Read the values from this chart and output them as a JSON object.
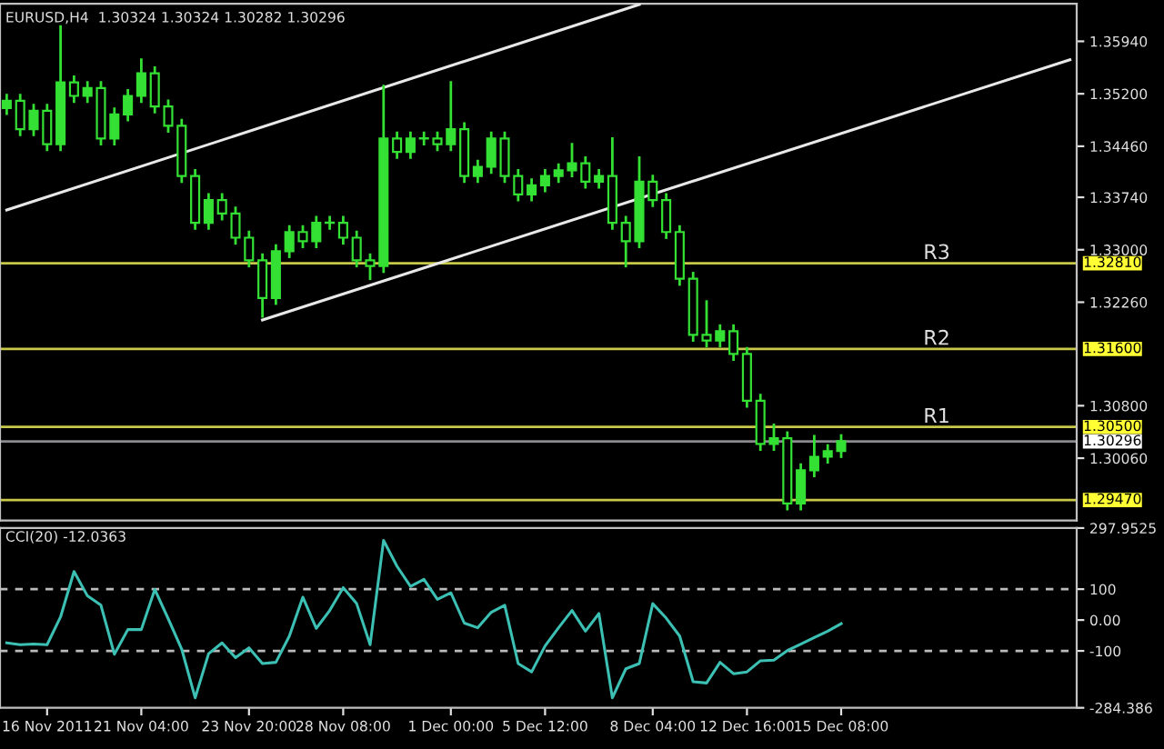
{
  "chart_data": [
    {
      "type": "candlestick",
      "title": "EURUSD,H4  1.30324 1.30324 1.30282 1.30296",
      "color": "#33e033",
      "grid": false,
      "tick_labels": "y",
      "categories": [
        null,
        null,
        null,
        null,
        null,
        null,
        null,
        null,
        null,
        null,
        null,
        null,
        null,
        null,
        null,
        null,
        null,
        null,
        null,
        null,
        null,
        null,
        null,
        null,
        null,
        null,
        null,
        null,
        null,
        null,
        null,
        null,
        null,
        null,
        null,
        null,
        null,
        null,
        null,
        null,
        null,
        null,
        null,
        null,
        null,
        null,
        null,
        null,
        null,
        null,
        null,
        null,
        null,
        null,
        null,
        null,
        null,
        null,
        null,
        null,
        null,
        null,
        null,
        null,
        null,
        null,
        null,
        null,
        null,
        null,
        null,
        null,
        null,
        null,
        null,
        null,
        null,
        null,
        null,
        null
      ],
      "ohlc": [
        [
          1.35,
          1.3518,
          1.3492,
          1.351
        ],
        [
          1.351,
          1.3518,
          1.3462,
          1.347
        ],
        [
          1.347,
          1.3504,
          1.3462,
          1.3496
        ],
        [
          1.3496,
          1.3504,
          1.3441,
          1.3449
        ],
        [
          1.3449,
          1.3615,
          1.3441,
          1.3536
        ],
        [
          1.3536,
          1.3544,
          1.3509,
          1.3517
        ],
        [
          1.3517,
          1.3536,
          1.3509,
          1.3528
        ],
        [
          1.3528,
          1.3536,
          1.3449,
          1.3457
        ],
        [
          1.3457,
          1.3499,
          1.3449,
          1.3491
        ],
        [
          1.3491,
          1.3525,
          1.3483,
          1.3517
        ],
        [
          1.3517,
          1.3568,
          1.3509,
          1.3549
        ],
        [
          1.3549,
          1.3557,
          1.3494,
          1.3502
        ],
        [
          1.3502,
          1.351,
          1.3467,
          1.3475
        ],
        [
          1.3475,
          1.3483,
          1.3396,
          1.3404
        ],
        [
          1.3404,
          1.3412,
          1.333,
          1.3338
        ],
        [
          1.3338,
          1.3378,
          1.333,
          1.337
        ],
        [
          1.337,
          1.3378,
          1.3343,
          1.3351
        ],
        [
          1.3351,
          1.3359,
          1.3309,
          1.3317
        ],
        [
          1.3317,
          1.3325,
          1.3277,
          1.3285
        ],
        [
          1.3285,
          1.3293,
          1.3206,
          1.3232
        ],
        [
          1.3232,
          1.3306,
          1.3224,
          1.3298
        ],
        [
          1.3298,
          1.3333,
          1.329,
          1.3325
        ],
        [
          1.3325,
          1.3333,
          1.3304,
          1.3312
        ],
        [
          1.3312,
          1.3346,
          1.3304,
          1.3338
        ],
        [
          1.3338,
          1.3346,
          1.333,
          1.3338
        ],
        [
          1.3338,
          1.3346,
          1.3309,
          1.3317
        ],
        [
          1.3317,
          1.3325,
          1.3277,
          1.3285
        ],
        [
          1.3285,
          1.3293,
          1.3259,
          1.3277
        ],
        [
          1.3277,
          1.3531,
          1.3269,
          1.3457
        ],
        [
          1.3457,
          1.3465,
          1.343,
          1.3438
        ],
        [
          1.3438,
          1.3465,
          1.343,
          1.3457
        ],
        [
          1.3457,
          1.3465,
          1.3449,
          1.3457
        ],
        [
          1.3457,
          1.3465,
          1.3441,
          1.3449
        ],
        [
          1.3449,
          1.3536,
          1.3441,
          1.347
        ],
        [
          1.347,
          1.3478,
          1.3396,
          1.3404
        ],
        [
          1.3404,
          1.3425,
          1.3396,
          1.3417
        ],
        [
          1.3417,
          1.3465,
          1.3409,
          1.3457
        ],
        [
          1.3457,
          1.3465,
          1.3396,
          1.3404
        ],
        [
          1.3404,
          1.3412,
          1.337,
          1.3378
        ],
        [
          1.3378,
          1.3399,
          1.337,
          1.3391
        ],
        [
          1.3391,
          1.3412,
          1.3383,
          1.3404
        ],
        [
          1.3404,
          1.342,
          1.3396,
          1.3412
        ],
        [
          1.3412,
          1.3449,
          1.3404,
          1.3422
        ],
        [
          1.3422,
          1.343,
          1.3388,
          1.3396
        ],
        [
          1.3396,
          1.3412,
          1.3388,
          1.3404
        ],
        [
          1.3404,
          1.3457,
          1.333,
          1.3338
        ],
        [
          1.3338,
          1.3346,
          1.3277,
          1.3312
        ],
        [
          1.3312,
          1.343,
          1.3304,
          1.3396
        ],
        [
          1.3396,
          1.3404,
          1.3362,
          1.337
        ],
        [
          1.337,
          1.3378,
          1.3317,
          1.3325
        ],
        [
          1.3325,
          1.3333,
          1.3251,
          1.3259
        ],
        [
          1.3259,
          1.3267,
          1.3172,
          1.318
        ],
        [
          1.318,
          1.3227,
          1.3164,
          1.3172
        ],
        [
          1.3172,
          1.3193,
          1.3164,
          1.3185
        ],
        [
          1.3185,
          1.3193,
          1.3145,
          1.3153
        ],
        [
          1.3153,
          1.3161,
          1.3079,
          1.3087
        ],
        [
          1.3087,
          1.3095,
          1.3018,
          1.3026
        ],
        [
          1.3026,
          1.3053,
          1.3018,
          1.3034
        ],
        [
          1.3034,
          1.3042,
          1.2934,
          1.2942
        ],
        [
          1.2942,
          1.2997,
          1.2934,
          1.2989
        ],
        [
          1.2989,
          1.3037,
          1.2981,
          1.3008
        ],
        [
          1.3008,
          1.3024,
          1.3,
          1.3016
        ],
        [
          1.3016,
          1.3038,
          1.3008,
          1.303
        ],
        null,
        null,
        null,
        null,
        null,
        null,
        null,
        null,
        null,
        null,
        null,
        null,
        null,
        null,
        null,
        null,
        null
      ],
      "series": [
        {
          "type": "line",
          "color": "#e8e8e8",
          "values": [
            1.3356,
            null,
            null,
            null,
            null,
            null,
            null,
            null,
            null,
            null,
            null,
            null,
            null,
            null,
            null,
            null,
            null,
            null,
            null,
            null,
            null,
            null,
            null,
            null,
            null,
            null,
            null,
            null,
            null,
            null,
            null,
            null,
            null,
            null,
            null,
            null,
            null,
            null,
            null,
            null,
            null,
            null,
            null,
            null,
            null,
            null,
            null,
            1.3646,
            null,
            null,
            null,
            null,
            null,
            null,
            null,
            null,
            null,
            null,
            null,
            null,
            null,
            null,
            null,
            null,
            null,
            null,
            null,
            null,
            null,
            null,
            null,
            null,
            null,
            null,
            null,
            null,
            null,
            null,
            null,
            null
          ]
        },
        {
          "type": "line",
          "color": "#e8e8e8",
          "values": [
            null,
            null,
            null,
            null,
            null,
            null,
            null,
            null,
            null,
            null,
            null,
            null,
            null,
            null,
            null,
            null,
            null,
            null,
            null,
            1.3201,
            null,
            null,
            null,
            null,
            null,
            null,
            null,
            null,
            null,
            null,
            null,
            null,
            null,
            null,
            null,
            null,
            null,
            null,
            null,
            null,
            null,
            null,
            null,
            null,
            null,
            null,
            null,
            null,
            null,
            null,
            null,
            null,
            null,
            null,
            null,
            null,
            null,
            null,
            null,
            null,
            null,
            null,
            null,
            null,
            null,
            null,
            null,
            null,
            null,
            null,
            null,
            null,
            null,
            null,
            null,
            null,
            null,
            null,
            null,
            1.3568
          ]
        }
      ],
      "ylim": [
        1.2918,
        1.3647
      ],
      "yticks": [
        {
          "value": 1.3594,
          "label": "1.35940"
        },
        {
          "value": 1.352,
          "label": "1.35200"
        },
        {
          "value": 1.3446,
          "label": "1.34460"
        },
        {
          "value": 1.3374,
          "label": "1.33740"
        },
        {
          "value": 1.33,
          "label": "1.33000"
        },
        {
          "value": 1.3226,
          "label": "1.32260"
        },
        {
          "value": 1.308,
          "label": "1.30800"
        },
        {
          "value": 1.3006,
          "label": "1.30060"
        }
      ],
      "ref_lines": [
        {
          "axis": "y",
          "value": 1.3281,
          "label": "R3",
          "color": "#c8c84a"
        },
        {
          "axis": "y",
          "value": 1.316,
          "label": "R2",
          "color": "#c8c84a"
        },
        {
          "axis": "y",
          "value": 1.305,
          "label": "R1",
          "color": "#c8c84a"
        },
        {
          "axis": "y",
          "value": 1.30296,
          "label": null,
          "color": "#8a8a90"
        },
        {
          "axis": "y",
          "value": 1.2947,
          "label": null,
          "color": "#c8c84a"
        }
      ],
      "annotations": [
        "1.32810",
        "1.31600",
        "1.30500",
        "1.30296",
        "1.29470"
      ]
    },
    {
      "type": "line",
      "title": "CCI(20) -12.0363",
      "grid": false,
      "categories": [
        null,
        null,
        null,
        "16 Nov 2011",
        null,
        null,
        null,
        null,
        null,
        null,
        "21 Nov 04:00",
        null,
        null,
        null,
        null,
        null,
        null,
        null,
        "23 Nov 20:00",
        null,
        null,
        null,
        null,
        null,
        null,
        "28 Nov 08:00",
        null,
        null,
        null,
        null,
        null,
        null,
        null,
        "1 Dec 00:00",
        null,
        null,
        null,
        null,
        null,
        null,
        "5 Dec 12:00",
        null,
        null,
        null,
        null,
        null,
        null,
        null,
        "8 Dec 04:00",
        null,
        null,
        null,
        null,
        null,
        null,
        "12 Dec 16:00",
        null,
        null,
        null,
        null,
        null,
        null,
        "15 Dec 08:00",
        null,
        null,
        null,
        null,
        null,
        null,
        null,
        null,
        null,
        null,
        null,
        null,
        null,
        null,
        null,
        null,
        null
      ],
      "series": [
        {
          "color": "#3cc0b4",
          "values": [
            -74,
            -80,
            -78,
            -80,
            10,
            157,
            78,
            48,
            -111,
            -31,
            -31,
            99,
            4,
            -94,
            -252,
            -109,
            -74,
            -122,
            -90,
            -141,
            -137,
            -52,
            74,
            -27,
            31,
            105,
            53,
            -80,
            258,
            174,
            109,
            132,
            67,
            88,
            -10,
            -25,
            25,
            48,
            -141,
            -168,
            -84,
            -25,
            31,
            -36,
            21,
            -252,
            -158,
            -141,
            53,
            6,
            -52,
            -200,
            -204,
            -137,
            -174,
            -168,
            -132,
            -130,
            -99,
            -78,
            -57,
            -36,
            -12,
            null,
            null,
            null,
            null,
            null,
            null,
            null,
            null,
            null,
            null,
            null,
            null,
            null,
            null,
            null,
            null,
            null
          ]
        }
      ],
      "ylim": [
        -284.386,
        297.9525
      ],
      "yticks": [
        {
          "value": 297.9525,
          "label": "297.9525"
        },
        100,
        {
          "value": 0,
          "label": "0.00"
        },
        -100,
        {
          "value": -284.386,
          "label": "-284.386"
        }
      ],
      "ref_lines": [
        {
          "axis": "y",
          "value": 100,
          "label": null,
          "color": "#bbbbbb",
          "line_style": "dashed"
        },
        {
          "axis": "y",
          "value": -100,
          "label": null,
          "color": "#bbbbbb",
          "line_style": "dashed"
        }
      ]
    }
  ]
}
